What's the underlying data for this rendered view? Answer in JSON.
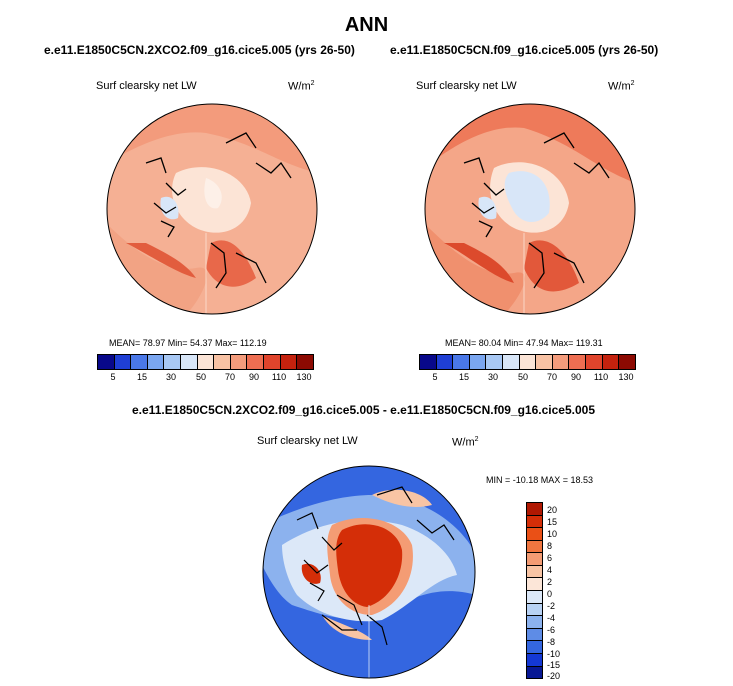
{
  "title": "ANN",
  "panels": [
    {
      "case": "e.e11.E1850C5CN.2XCO2.f09_g16.cice5.005 (yrs 26-50)",
      "variable": "Surf clearsky net LW",
      "unit_base": "W/m",
      "unit_exp": "2",
      "stats": "MEAN=  78.97  Min=  54.37  Max= 112.19"
    },
    {
      "case": "e.e11.E1850C5CN.f09_g16.cice5.005 (yrs 26-50)",
      "variable": "Surf clearsky net LW",
      "unit_base": "W/m",
      "unit_exp": "2",
      "stats": "MEAN=  80.04  Min=  47.94  Max= 119.31"
    }
  ],
  "diff": {
    "case": "e.e11.E1850C5CN.2XCO2.f09_g16.cice5.005 - e.e11.E1850C5CN.f09_g16.cice5.005",
    "variable": "Surf clearsky net LW",
    "unit_base": "W/m",
    "unit_exp": "2",
    "stats": "MIN = -10.18 MAX =  18.53"
  },
  "colorbar_top": {
    "colors": [
      "#08088a",
      "#1f3fd4",
      "#4a78e8",
      "#7aa6f0",
      "#a8c8f4",
      "#d8e6f8",
      "#fbe4d6",
      "#f8c2a4",
      "#f49c7c",
      "#ee6e52",
      "#e0442c",
      "#c4220e",
      "#8c0a02"
    ],
    "tick_labels": [
      "5",
      "15",
      "30",
      "50",
      "70",
      "90",
      "110",
      "130"
    ]
  },
  "colorbar_diff": {
    "colors": [
      "#b01802",
      "#d42e08",
      "#ea5016",
      "#f07640",
      "#f49c74",
      "#f8c4a4",
      "#fce6d8",
      "#dce8f8",
      "#b8d2f4",
      "#8cb2ee",
      "#5e8ce6",
      "#3466e0",
      "#1438d4",
      "#081894"
    ],
    "tick_labels": [
      "20",
      "15",
      "10",
      "8",
      "6",
      "4",
      "2",
      "0",
      "-2",
      "-4",
      "-6",
      "-8",
      "-10",
      "-15",
      "-20"
    ]
  }
}
